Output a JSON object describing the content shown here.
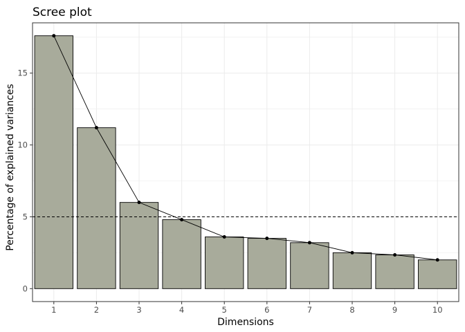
{
  "chart_data": {
    "type": "bar",
    "title": "Scree plot",
    "xlabel": "Dimensions",
    "ylabel": "Percentage of explained variances",
    "categories": [
      "1",
      "2",
      "3",
      "4",
      "5",
      "6",
      "7",
      "8",
      "9",
      "10"
    ],
    "values": [
      17.6,
      11.2,
      6.0,
      4.8,
      3.6,
      3.5,
      3.2,
      2.5,
      2.35,
      2.0
    ],
    "y_ticks": [
      0,
      5,
      10,
      15
    ],
    "ylim": [
      -0.9,
      18.5
    ],
    "reference_line": {
      "y": 5,
      "style": "dashed"
    },
    "overlay": "line-with-points",
    "grid": true,
    "colors": {
      "bar_fill": "#a8ab9b",
      "bar_stroke": "#000000",
      "line": "#000000",
      "grid": "#ebebeb",
      "panel_border": "#333333"
    }
  }
}
